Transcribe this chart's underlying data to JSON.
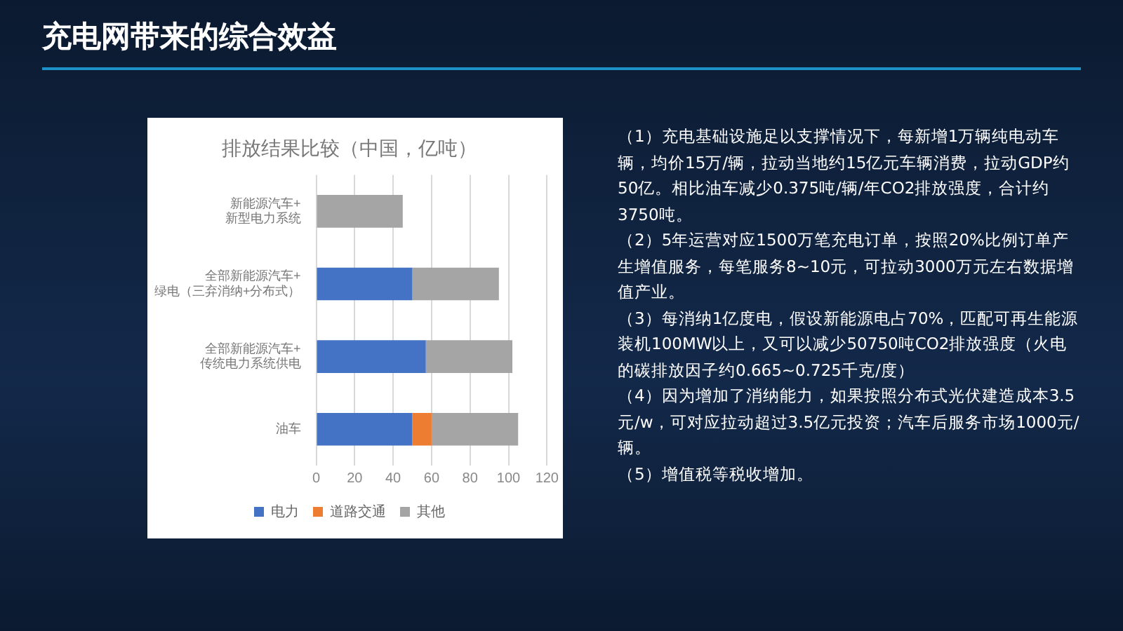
{
  "chart_data": {
    "type": "bar",
    "orientation": "horizontal",
    "stacked": true,
    "title": "充电网带来的综合效益",
    "subtitle": "排放结果比较（中国，亿吨）",
    "categories": [
      "新能源汽车+\n新型电力系统",
      "全部新能源汽车+\n绿电（三弃消纳+分布式）",
      "全部新能源汽车+\n传统电力系统供电",
      "油车"
    ],
    "series": [
      {
        "name": "电力",
        "color": "#4472c4",
        "values": [
          null,
          50,
          57,
          50
        ]
      },
      {
        "name": "道路交通",
        "color": "#ed7d31",
        "values": [
          null,
          null,
          null,
          10
        ]
      },
      {
        "name": "其他",
        "color": "#a5a5a5",
        "values": [
          45,
          45,
          45,
          45
        ]
      }
    ],
    "xlim": [
      0,
      120
    ],
    "xticks": [
      0,
      20,
      40,
      60,
      80,
      100,
      120
    ],
    "grid": "x",
    "legend": "bottom",
    "annotations": [
      "（1）充电基础设施足以支撑情况下，每新增1万辆纯电动车辆，均价15万/辆，拉动当地约15亿元车辆消费，拉动GDP约50亿。相比油车减少0.375吨/辆/年CO2排放强度，合计约3750吨。",
      "（2）5年运营对应1500万笔充电订单，按照20%比例订单产生增值服务，每笔服务8~10元，可拉动3000万元左右数据增值产业。",
      "（3）每消纳1亿度电，假设新能源电占70%，匹配可再生能源装机100MW以上，又可以减少50750吨CO2排放强度（火电的碳排放因子约0.665~0.725千克/度）",
      "（4）因为增加了消纳能力，如果按照分布式光伏建造成本3.5元/w，可对应拉动超过3.5亿元投资；汽车后服务市场1000元/辆。",
      "（5）增值税等税收增加。"
    ]
  }
}
